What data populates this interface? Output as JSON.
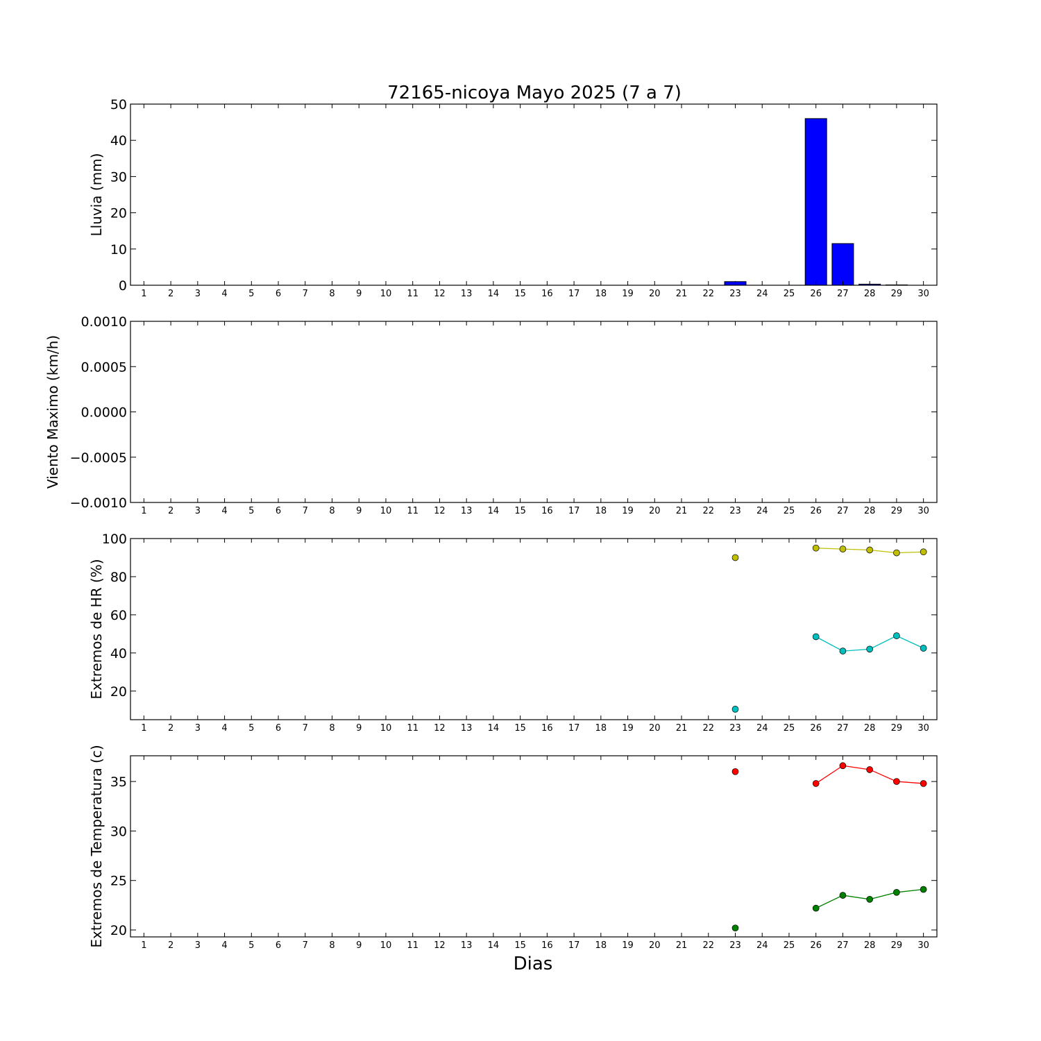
{
  "chart_data": {
    "title": "72165-nicoya Mayo 2025  (7 a 7)",
    "xlabel": "Dias",
    "x_ticks": [
      "1",
      "2",
      "3",
      "4",
      "5",
      "6",
      "7",
      "8",
      "9",
      "10",
      "11",
      "12",
      "13",
      "14",
      "15",
      "16",
      "17",
      "18",
      "19",
      "20",
      "21",
      "22",
      "23",
      "24",
      "25",
      "26",
      "27",
      "28",
      "29",
      "30"
    ],
    "panels": [
      {
        "id": "lluvia",
        "type": "bar",
        "ylabel": "Lluvia (mm)",
        "ylim": [
          0,
          50
        ],
        "yticks": [
          "0",
          "10",
          "20",
          "30",
          "40",
          "50"
        ],
        "ytick_values": [
          0,
          10,
          20,
          30,
          40,
          50
        ],
        "series": [
          {
            "color": "#0000ff",
            "points": [
              {
                "x": 23,
                "y": 1.0
              },
              {
                "x": 26,
                "y": 46.0
              },
              {
                "x": 27,
                "y": 11.5
              },
              {
                "x": 28,
                "y": 0.3
              },
              {
                "x": 29,
                "y": 0.1
              }
            ]
          }
        ]
      },
      {
        "id": "viento",
        "type": "line",
        "ylabel": "Viento Maximo (km/h)",
        "ylim": [
          -0.001,
          0.001
        ],
        "yticks": [
          "0.0010",
          "0.0005",
          "0.0000",
          "−0.0005",
          "−0.0010"
        ],
        "ytick_values": [
          0.001,
          0.0005,
          0,
          -0.0005,
          -0.001
        ],
        "series": []
      },
      {
        "id": "hr",
        "type": "line",
        "ylabel": "Extremos de HR (%)",
        "ylim": [
          5,
          100
        ],
        "yticks": [
          "20",
          "40",
          "60",
          "80",
          "100"
        ],
        "ytick_values": [
          20,
          40,
          60,
          80,
          100
        ],
        "series": [
          {
            "color": "#bfbf00",
            "segments": [
              [
                {
                  "x": 23,
                  "y": 90
                }
              ],
              [
                {
                  "x": 26,
                  "y": 95
                },
                {
                  "x": 27,
                  "y": 94.5
                },
                {
                  "x": 28,
                  "y": 94
                },
                {
                  "x": 29,
                  "y": 92.5
                },
                {
                  "x": 30,
                  "y": 93
                }
              ]
            ]
          },
          {
            "color": "#00bfbf",
            "segments": [
              [
                {
                  "x": 23,
                  "y": 10.5
                }
              ],
              [
                {
                  "x": 26,
                  "y": 48.5
                },
                {
                  "x": 27,
                  "y": 41
                },
                {
                  "x": 28,
                  "y": 42
                },
                {
                  "x": 29,
                  "y": 49
                },
                {
                  "x": 30,
                  "y": 42.5
                }
              ]
            ]
          }
        ]
      },
      {
        "id": "temp",
        "type": "line",
        "ylabel": "Extremos de Temperatura (c)",
        "ylim": [
          19.3,
          37.6
        ],
        "yticks": [
          "20",
          "25",
          "30",
          "35"
        ],
        "ytick_values": [
          20,
          25,
          30,
          35
        ],
        "series": [
          {
            "color": "#ff0000",
            "segments": [
              [
                {
                  "x": 23,
                  "y": 36.0
                }
              ],
              [
                {
                  "x": 26,
                  "y": 34.8
                },
                {
                  "x": 27,
                  "y": 36.6
                },
                {
                  "x": 28,
                  "y": 36.2
                },
                {
                  "x": 29,
                  "y": 35.0
                },
                {
                  "x": 30,
                  "y": 34.8
                }
              ]
            ]
          },
          {
            "color": "#008000",
            "segments": [
              [
                {
                  "x": 23,
                  "y": 20.2
                }
              ],
              [
                {
                  "x": 26,
                  "y": 22.2
                },
                {
                  "x": 27,
                  "y": 23.5
                },
                {
                  "x": 28,
                  "y": 23.1
                },
                {
                  "x": 29,
                  "y": 23.8
                },
                {
                  "x": 30,
                  "y": 24.1
                }
              ]
            ]
          }
        ]
      }
    ]
  }
}
